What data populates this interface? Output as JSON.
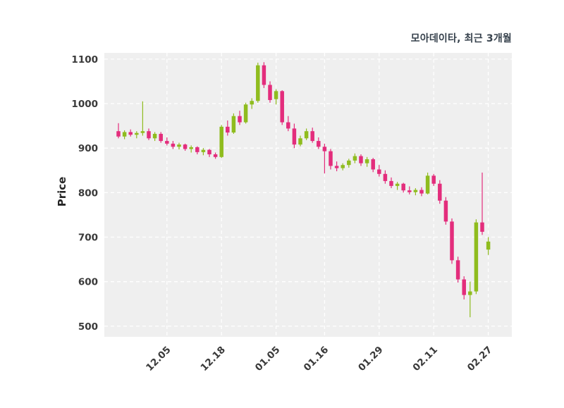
{
  "title": "모아데이타, 최근 3개월",
  "colors": {
    "up": "#8fbc1e",
    "down": "#e32d7c",
    "plot_bg": "#efefef",
    "grid": "#ffffff",
    "tick_text": "#3a3a3a",
    "title_text": "#37424d",
    "figure_bg": "#ffffff"
  },
  "chart_data": {
    "type": "candlestick",
    "title": "모아데이타, 최근 3개월",
    "xlabel": "",
    "ylabel": "Price",
    "ylim": [
      476,
      1114
    ],
    "yticks": [
      500,
      600,
      700,
      800,
      900,
      1000,
      1100
    ],
    "xtick_labels": [
      "12.05",
      "12.18",
      "01.05",
      "01.16",
      "01.29",
      "02.11",
      "02.27"
    ],
    "xtick_indices": [
      8,
      17,
      26,
      34,
      43,
      52,
      61
    ],
    "grid": true,
    "legend": "none",
    "up_color": "#8fbc1e",
    "down_color": "#e32d7c",
    "ohlc_format": [
      "open",
      "high",
      "low",
      "close"
    ],
    "candles": [
      [
        938,
        956,
        922,
        926
      ],
      [
        926,
        940,
        920,
        936
      ],
      [
        936,
        942,
        926,
        930
      ],
      [
        930,
        938,
        922,
        934
      ],
      [
        934,
        1005,
        928,
        938
      ],
      [
        938,
        944,
        918,
        922
      ],
      [
        922,
        936,
        916,
        932
      ],
      [
        932,
        936,
        912,
        916
      ],
      [
        916,
        924,
        906,
        910
      ],
      [
        910,
        916,
        898,
        903
      ],
      [
        903,
        912,
        897,
        908
      ],
      [
        908,
        910,
        894,
        898
      ],
      [
        898,
        906,
        890,
        902
      ],
      [
        902,
        904,
        886,
        891
      ],
      [
        891,
        900,
        884,
        896
      ],
      [
        896,
        898,
        880,
        886
      ],
      [
        886,
        890,
        876,
        880
      ],
      [
        880,
        952,
        878,
        948
      ],
      [
        948,
        962,
        928,
        935
      ],
      [
        935,
        978,
        932,
        972
      ],
      [
        972,
        984,
        952,
        958
      ],
      [
        958,
        1002,
        955,
        998
      ],
      [
        998,
        1012,
        988,
        1006
      ],
      [
        1006,
        1092,
        1002,
        1086
      ],
      [
        1086,
        1093,
        1035,
        1042
      ],
      [
        1042,
        1050,
        1002,
        1008
      ],
      [
        1010,
        1032,
        998,
        1028
      ],
      [
        1028,
        1030,
        952,
        958
      ],
      [
        958,
        972,
        938,
        944
      ],
      [
        944,
        955,
        900,
        908
      ],
      [
        908,
        928,
        904,
        922
      ],
      [
        922,
        944,
        918,
        938
      ],
      [
        938,
        946,
        912,
        916
      ],
      [
        916,
        924,
        898,
        903
      ],
      [
        903,
        910,
        843,
        893
      ],
      [
        893,
        898,
        852,
        860
      ],
      [
        860,
        870,
        848,
        855
      ],
      [
        855,
        866,
        850,
        862
      ],
      [
        862,
        876,
        856,
        872
      ],
      [
        872,
        888,
        866,
        882
      ],
      [
        882,
        886,
        860,
        866
      ],
      [
        866,
        880,
        858,
        875
      ],
      [
        875,
        878,
        846,
        852
      ],
      [
        852,
        862,
        836,
        842
      ],
      [
        842,
        850,
        820,
        826
      ],
      [
        826,
        834,
        810,
        815
      ],
      [
        815,
        824,
        806,
        820
      ],
      [
        820,
        822,
        800,
        805
      ],
      [
        805,
        814,
        796,
        801
      ],
      [
        801,
        810,
        794,
        806
      ],
      [
        806,
        812,
        792,
        798
      ],
      [
        798,
        845,
        796,
        838
      ],
      [
        838,
        842,
        815,
        820
      ],
      [
        820,
        828,
        775,
        782
      ],
      [
        782,
        790,
        728,
        735
      ],
      [
        735,
        742,
        640,
        648
      ],
      [
        648,
        656,
        598,
        605
      ],
      [
        605,
        612,
        560,
        570
      ],
      [
        570,
        600,
        520,
        578
      ],
      [
        578,
        740,
        572,
        733
      ],
      [
        733,
        845,
        705,
        712
      ],
      [
        672,
        700,
        660,
        690
      ]
    ]
  }
}
